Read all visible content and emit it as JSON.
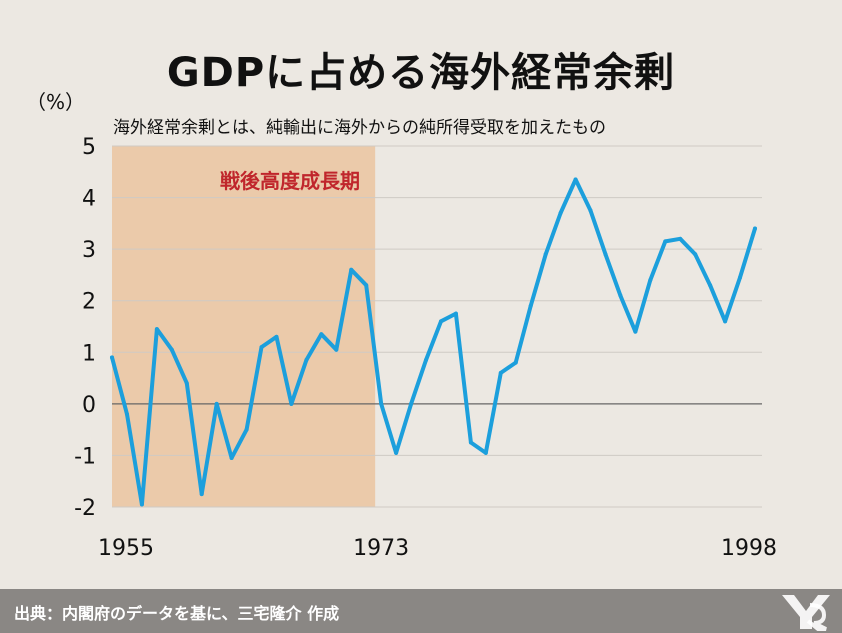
{
  "title": "GDPに占める海外経常余剰",
  "footer": {
    "source": "出典：内閣府のデータを基に、三宅隆介 作成"
  },
  "colors": {
    "line": "#1c9fdc",
    "band": "#ebcaaa",
    "grid": "#cfcac4",
    "background": "#ece8e2",
    "footer": "#8a8784",
    "band_label": "#c0262c"
  },
  "chart_data": {
    "type": "line",
    "title": "GDPに占める海外経常余剰",
    "subtitle": "海外経常余剰とは、純輸出に海外からの純所得受取を加えたもの",
    "ylabel": "（%）",
    "xlabel": "",
    "ylim": [
      -2,
      5
    ],
    "xlim": [
      1955,
      1998
    ],
    "yticks": [
      "5",
      "4",
      "3",
      "2",
      "1",
      "0",
      "-1",
      "-2"
    ],
    "xticks": [
      "1955",
      "1973",
      "1998"
    ],
    "grid": true,
    "shaded_period": {
      "start": 1955,
      "end": 1973,
      "label": "戦後高度成長期"
    },
    "x": [
      1955,
      1956,
      1957,
      1958,
      1959,
      1960,
      1961,
      1962,
      1963,
      1964,
      1965,
      1966,
      1967,
      1968,
      1969,
      1970,
      1971,
      1972,
      1973,
      1974,
      1975,
      1976,
      1977,
      1978,
      1979,
      1980,
      1981,
      1982,
      1983,
      1984,
      1985,
      1986,
      1987,
      1988,
      1989,
      1990,
      1991,
      1992,
      1993,
      1994,
      1995,
      1996,
      1997,
      1998
    ],
    "values": [
      0.9,
      -0.2,
      -1.95,
      1.45,
      1.05,
      0.4,
      -1.75,
      0.0,
      -1.05,
      -0.5,
      1.1,
      1.3,
      0.0,
      0.85,
      1.35,
      1.05,
      2.6,
      2.3,
      0.0,
      -0.95,
      0.0,
      0.85,
      1.6,
      1.75,
      -0.75,
      -0.95,
      0.6,
      0.8,
      1.9,
      2.9,
      3.7,
      4.35,
      3.75,
      2.9,
      2.1,
      1.4,
      2.4,
      3.15,
      3.2,
      2.9,
      2.3,
      1.6,
      2.45,
      3.4
    ]
  }
}
